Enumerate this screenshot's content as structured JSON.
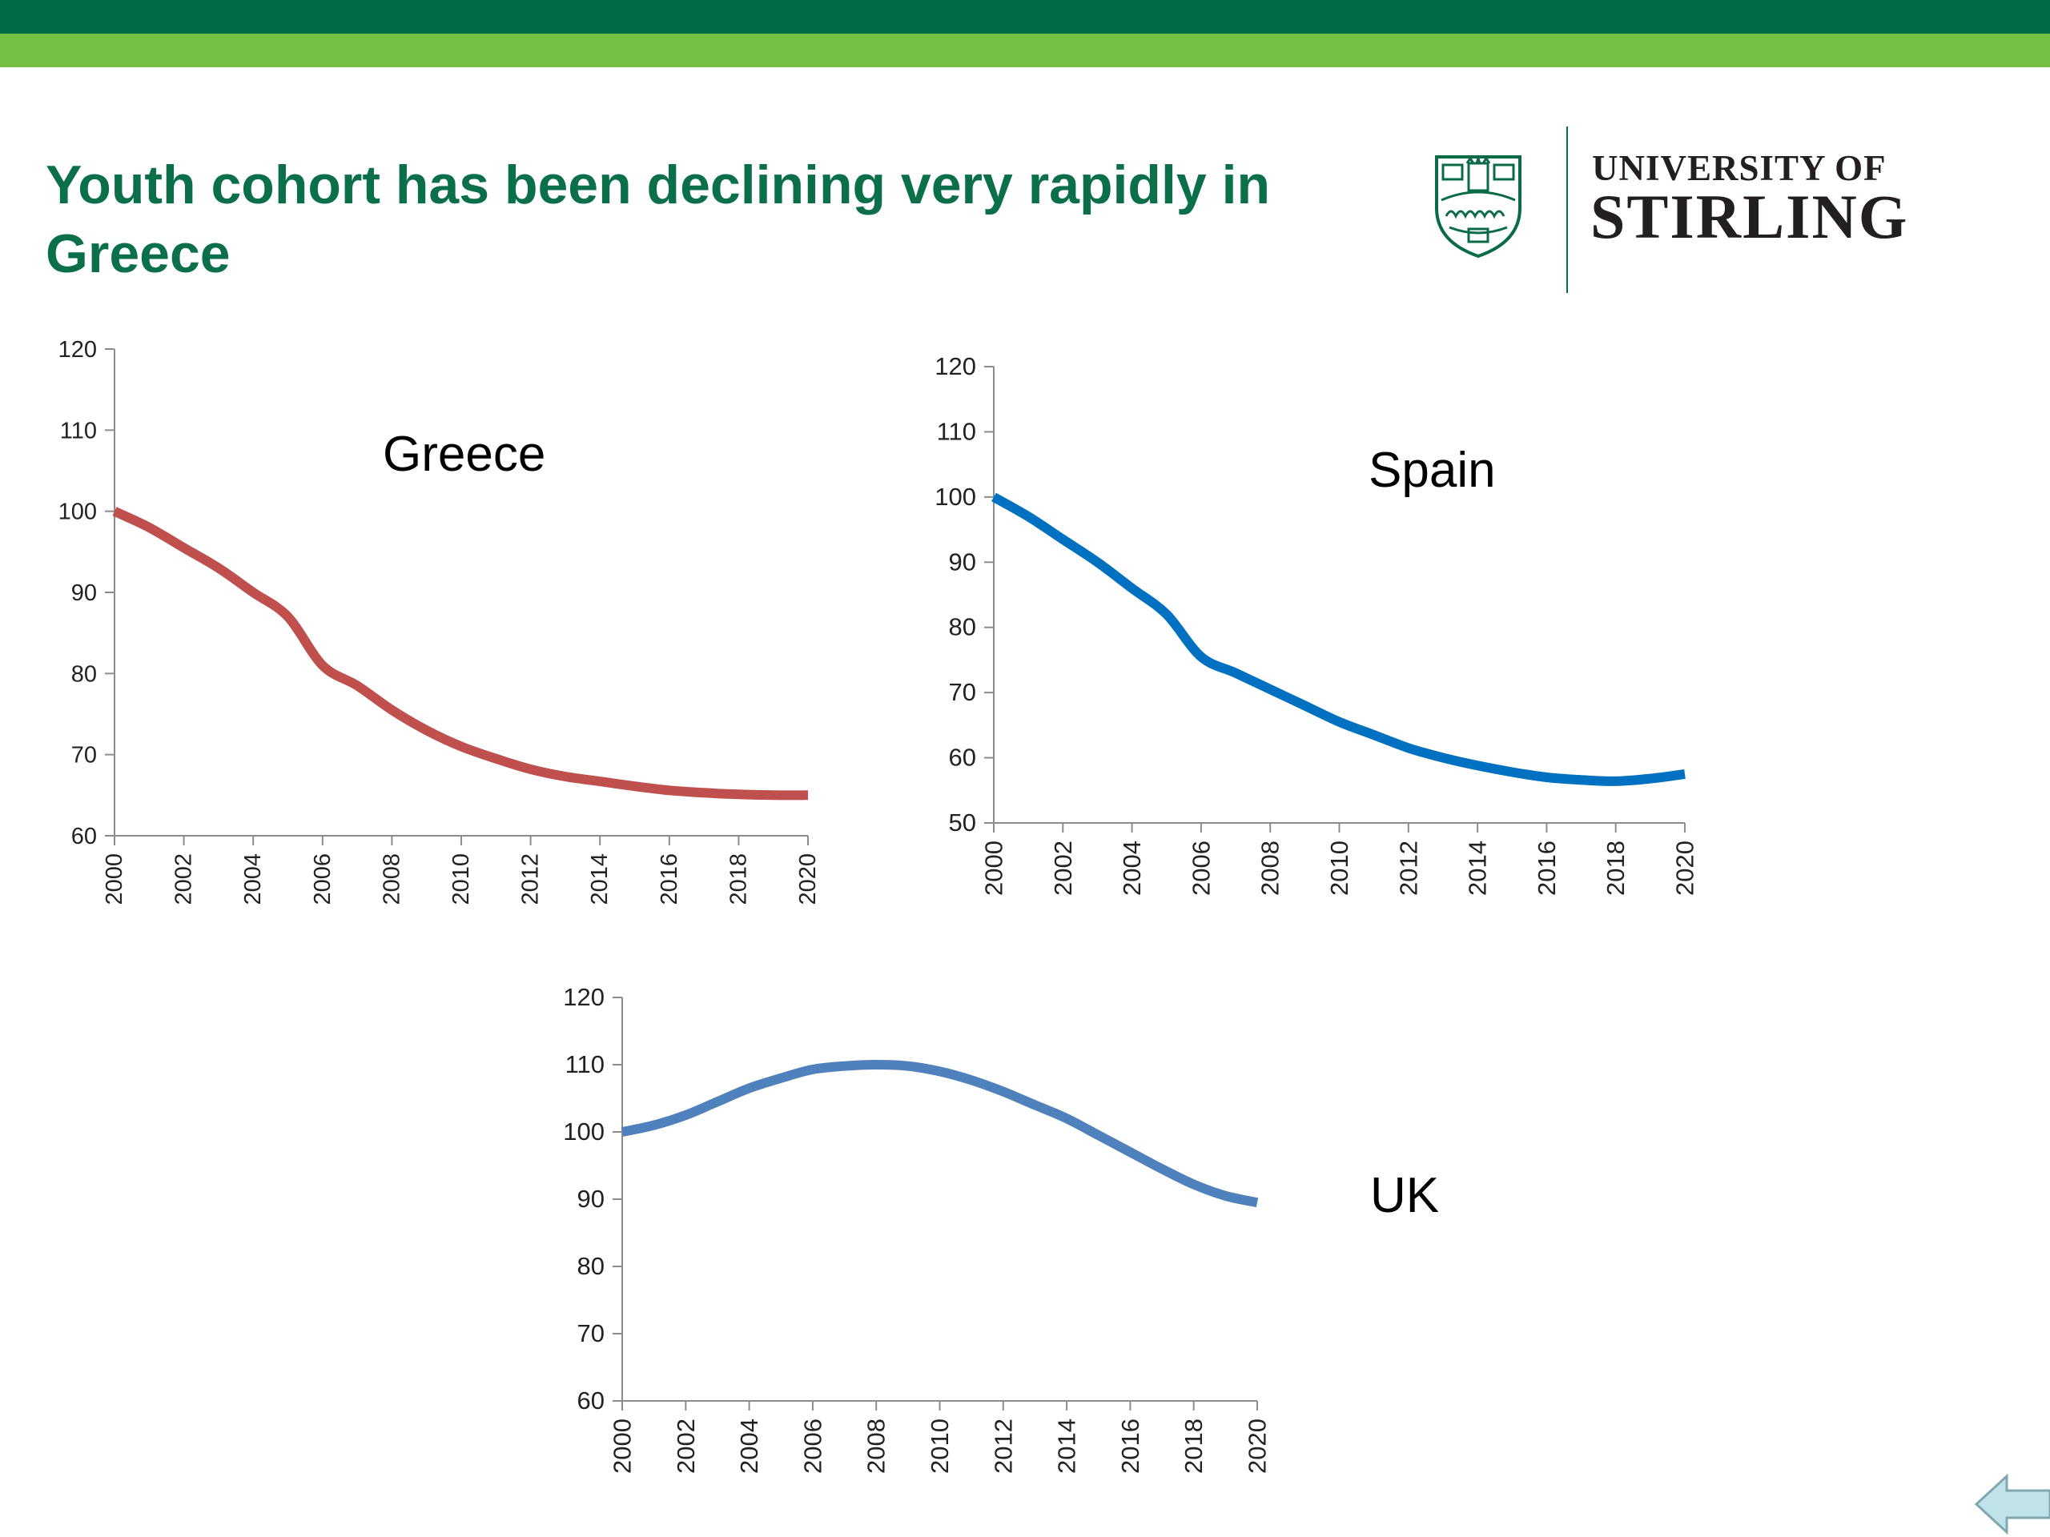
{
  "slide": {
    "title": "Youth cohort has been declining very rapidly in Greece"
  },
  "header": {
    "colors": {
      "dark_band": "#006c45",
      "light_band": "#73c044",
      "title": "#0b7049"
    }
  },
  "logo": {
    "line1": "UNIVERSITY OF",
    "line2": "STIRLING",
    "color": "#0b6b47"
  },
  "chart_data": [
    {
      "type": "line",
      "annotation": "Greece",
      "x": [
        2000,
        2001,
        2002,
        2003,
        2004,
        2005,
        2006,
        2007,
        2008,
        2009,
        2010,
        2011,
        2012,
        2013,
        2014,
        2015,
        2016,
        2017,
        2018,
        2019,
        2020
      ],
      "series": [
        {
          "values": [
            100,
            98,
            95.5,
            93,
            90,
            87,
            81,
            78.5,
            75.5,
            73,
            71,
            69.5,
            68.2,
            67.3,
            66.7,
            66.1,
            65.6,
            65.3,
            65.1,
            65,
            65
          ],
          "color": "#c0504d"
        }
      ],
      "xticks": [
        2000,
        2002,
        2004,
        2006,
        2008,
        2010,
        2012,
        2014,
        2016,
        2018,
        2020
      ],
      "yticks": [
        60,
        70,
        80,
        90,
        100,
        110,
        120
      ],
      "xlim": [
        2000,
        2020
      ],
      "ylim": [
        60,
        120
      ],
      "grid": false
    },
    {
      "type": "line",
      "annotation": "Spain",
      "x": [
        2000,
        2001,
        2002,
        2003,
        2004,
        2005,
        2006,
        2007,
        2008,
        2009,
        2010,
        2011,
        2012,
        2013,
        2014,
        2015,
        2016,
        2017,
        2018,
        2019,
        2020
      ],
      "series": [
        {
          "values": [
            100,
            97,
            93.5,
            90,
            86,
            82,
            75.5,
            73,
            70.5,
            68,
            65.5,
            63.5,
            61.5,
            60,
            58.8,
            57.8,
            57,
            56.6,
            56.4,
            56.8,
            57.5
          ],
          "color": "#0070c0"
        }
      ],
      "xticks": [
        2000,
        2002,
        2004,
        2006,
        2008,
        2010,
        2012,
        2014,
        2016,
        2018,
        2020
      ],
      "yticks": [
        50,
        60,
        70,
        80,
        90,
        100,
        110,
        120
      ],
      "xlim": [
        2000,
        2020
      ],
      "ylim": [
        50,
        120
      ],
      "grid": false
    },
    {
      "type": "line",
      "annotation": "UK",
      "x": [
        2000,
        2001,
        2002,
        2003,
        2004,
        2005,
        2006,
        2007,
        2008,
        2009,
        2010,
        2011,
        2012,
        2013,
        2014,
        2015,
        2016,
        2017,
        2018,
        2019,
        2020
      ],
      "series": [
        {
          "values": [
            100,
            101,
            102.5,
            104.5,
            106.5,
            108,
            109.3,
            109.8,
            110,
            109.8,
            109,
            107.7,
            106,
            104,
            102,
            99.5,
            97,
            94.5,
            92.2,
            90.5,
            89.5
          ],
          "color": "#4f81bd"
        }
      ],
      "xticks": [
        2000,
        2002,
        2004,
        2006,
        2008,
        2010,
        2012,
        2014,
        2016,
        2018,
        2020
      ],
      "yticks": [
        60,
        70,
        80,
        90,
        100,
        110,
        120
      ],
      "xlim": [
        2000,
        2020
      ],
      "ylim": [
        60,
        120
      ],
      "grid": false
    }
  ],
  "nav": {
    "back_icon": "back-arrow-icon",
    "colors": {
      "fill": "#bfe3e8",
      "stroke": "#7fa8b0"
    }
  }
}
